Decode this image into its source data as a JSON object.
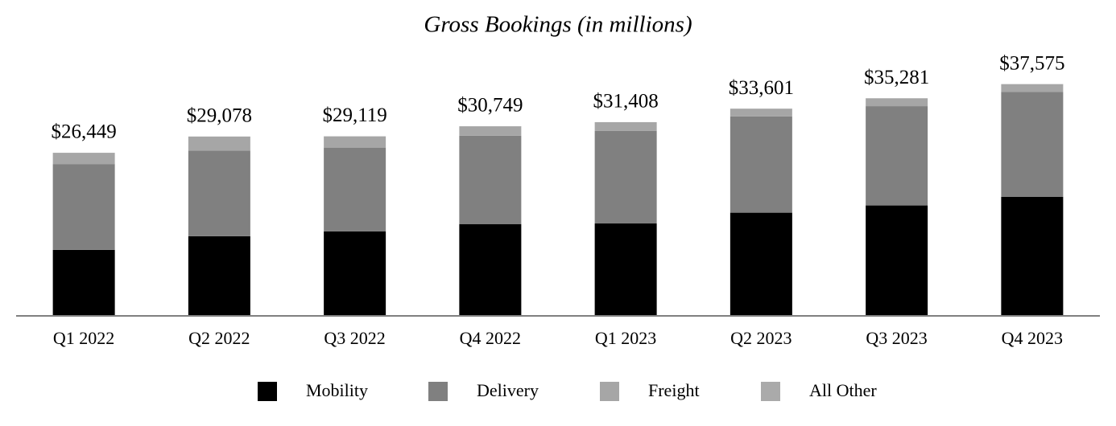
{
  "chart_data": {
    "type": "stacked_bar",
    "title": "Gross Bookings (in millions)",
    "categories": [
      "Q1 2022",
      "Q2 2022",
      "Q3 2022",
      "Q4 2022",
      "Q1 2023",
      "Q2 2023",
      "Q3 2023",
      "Q4 2023"
    ],
    "series": [
      {
        "name": "Mobility",
        "color": "#000000",
        "values": [
          10707,
          12914,
          13684,
          14888,
          14981,
          16728,
          17903,
          19285
        ]
      },
      {
        "name": "Delivery",
        "color": "#808080",
        "values": [
          13903,
          13876,
          13594,
          14315,
          15026,
          15595,
          16094,
          17011
        ]
      },
      {
        "name": "Freight",
        "color": "#a6a6a6",
        "values": [
          1823,
          2270,
          1822,
          1530,
          1389,
          1266,
          1277,
          1269
        ]
      },
      {
        "name": "All Other",
        "color": "#aaaaaa",
        "values": [
          16,
          18,
          19,
          16,
          12,
          12,
          7,
          10
        ]
      }
    ],
    "totals": [
      26449,
      29078,
      29119,
      30749,
      31408,
      33601,
      35281,
      37575
    ],
    "value_labels": [
      "$26,449",
      "$29,078",
      "$29,119",
      "$30,749",
      "$31,408",
      "$33,601",
      "$35,281",
      "$37,575"
    ],
    "ylim": [
      0,
      40000
    ],
    "legend": "bottom"
  }
}
